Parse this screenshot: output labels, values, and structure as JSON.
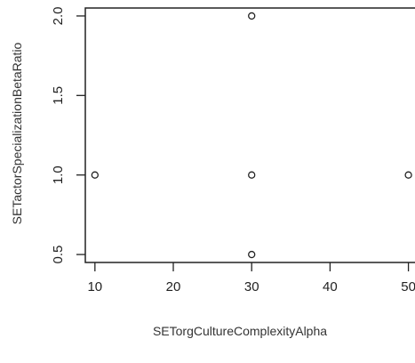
{
  "chart_data": {
    "type": "scatter",
    "title": "",
    "xlabel": "SETorgCultureComplexityAlpha",
    "ylabel": "SETactorSpecializationBetaRatio",
    "xlim": [
      9,
      50.5
    ],
    "ylim": [
      0.45,
      2.05
    ],
    "x_ticks": [
      10,
      20,
      30,
      40,
      50
    ],
    "y_ticks": [
      0.5,
      1.0,
      1.5,
      2.0
    ],
    "x_tick_labels": [
      "10",
      "20",
      "30",
      "40",
      "50"
    ],
    "y_tick_labels": [
      "0.5",
      "1.0",
      "1.5",
      "2.0"
    ],
    "grid": false,
    "marker": "open-circle",
    "marker_color": "#222222",
    "series": [
      {
        "points": [
          {
            "x": 10,
            "y": 1.0
          },
          {
            "x": 30,
            "y": 2.0
          },
          {
            "x": 30,
            "y": 1.0
          },
          {
            "x": 30,
            "y": 0.5
          },
          {
            "x": 50,
            "y": 1.0
          }
        ]
      }
    ]
  }
}
